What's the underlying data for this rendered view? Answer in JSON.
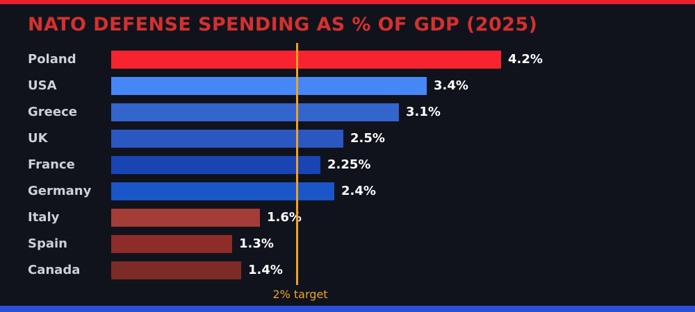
{
  "page": {
    "background": "#10131c",
    "top_strip_color": "#e8212d",
    "bottom_strip_color": "#2b4fd8"
  },
  "chart_data": {
    "type": "bar",
    "orientation": "horizontal",
    "title": "NATO DEFENSE SPENDING AS % OF GDP (2025)",
    "title_color": "#d5302e",
    "xlabel": "",
    "ylabel": "",
    "categories": [
      "Poland",
      "USA",
      "Greece",
      "UK",
      "France",
      "Germany",
      "Italy",
      "Spain",
      "Canada"
    ],
    "values": [
      4.2,
      3.4,
      3.1,
      2.5,
      2.25,
      2.4,
      1.6,
      1.3,
      1.4
    ],
    "value_labels": [
      "4.2%",
      "3.4%",
      "3.1%",
      "2.5%",
      "2.25%",
      "2.4%",
      "1.6%",
      "1.3%",
      "1.4%"
    ],
    "bar_colors": [
      "#f7232e",
      "#4687f8",
      "#3465cd",
      "#2b57c3",
      "#1844b4",
      "#1a56c8",
      "#a43c38",
      "#8d2c28",
      "#7d2b27"
    ],
    "label_color": "#ccd1d7",
    "value_label_color": "#ffffff",
    "xlim": [
      0,
      4.3
    ],
    "grid": false,
    "legend": false,
    "target_line": {
      "value": 2,
      "label": "2% target",
      "color": "#f0a325"
    }
  }
}
